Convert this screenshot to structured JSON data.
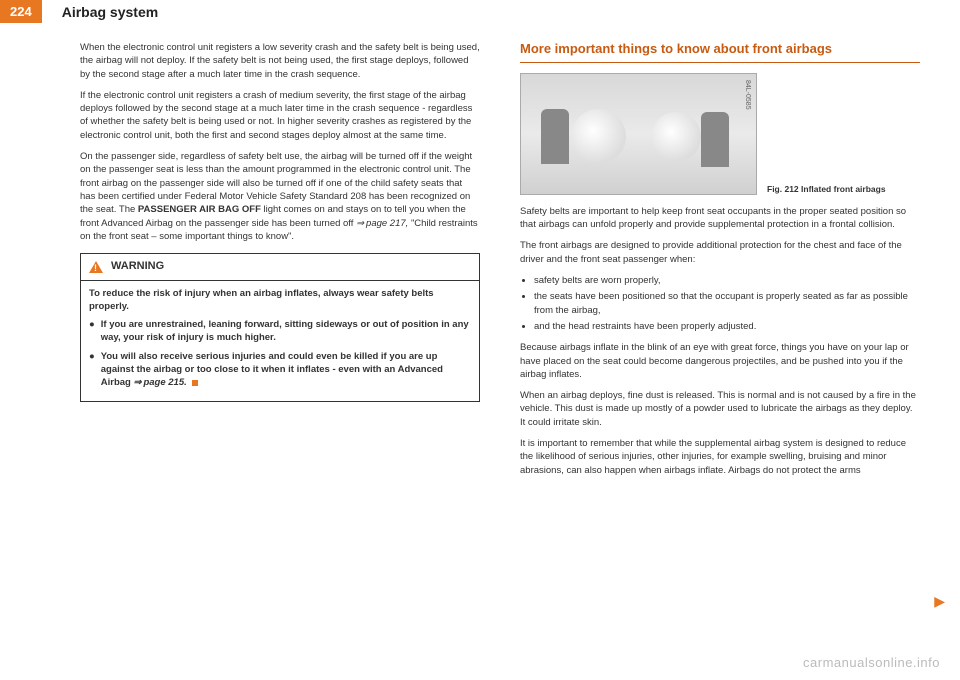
{
  "header": {
    "page_number": "224",
    "title": "Airbag system"
  },
  "left_column": {
    "p1": "When the electronic control unit registers a low severity crash and the safety belt is being used, the airbag will not deploy. If the safety belt is not being used, the first stage deploys, followed by the second stage after a much later time in the crash sequence.",
    "p2": "If the electronic control unit registers a crash of medium severity, the first stage of the airbag deploys followed by the second stage at a much later time in the crash sequence - regardless of whether the safety belt is being used or not. In higher severity crashes as registered by the electronic control unit, both the first and second stages deploy almost at the same time.",
    "p3a": "On the passenger side, regardless of safety belt use, the airbag will be turned off if the weight on the passenger seat is less than the amount programmed in the electronic control unit. The front airbag on the passenger side will also be turned off if one of the child safety seats that has been certified under Federal Motor Vehicle Safety Standard 208 has been recognized on the seat. The ",
    "p3_bold": "PASSENGER AIR BAG OFF",
    "p3b": " light comes on and stays on to tell you when the front Advanced Airbag on the passenger side has been turned off ",
    "p3_ref": "page 217,",
    "p3c": " \"Child restraints on the front seat – some important things to know\"."
  },
  "warning": {
    "title": "WARNING",
    "p1": "To reduce the risk of injury when an airbag inflates, always wear safety belts properly.",
    "b1": "If you are unrestrained, leaning forward, sitting sideways or out of position in any way, your risk of injury is much higher.",
    "b2a": "You will also receive serious injuries and could even be killed if you are up against the airbag or too close to it when it inflates - even with an Advanced Airbag ",
    "b2_ref": "page 215."
  },
  "right_column": {
    "heading": "More important things to know about front airbags",
    "fig_code": "84L-0585",
    "fig_num": "Fig. 212",
    "fig_caption": "Inflated front airbags",
    "p1": "Safety belts are important to help keep front seat occupants in the proper seated position so that airbags can unfold properly and provide supplemental protection in a frontal collision.",
    "p2": "The front airbags are designed to provide additional protection for the chest and face of the driver and the front seat passenger when:",
    "li1": "safety belts are worn properly,",
    "li2": "the seats have been positioned so that the occupant is properly seated as far as possible from the airbag,",
    "li3": "and the head restraints have been properly adjusted.",
    "p3": "Because airbags inflate in the blink of an eye with great force, things you have on your lap or have placed on the seat could become dangerous projectiles, and be pushed into you if the airbag inflates.",
    "p4": "When an airbag deploys, fine dust is released. This is normal and is not caused by a fire in the vehicle. This dust is made up mostly of a powder used to lubricate the airbags as they deploy. It could irritate skin.",
    "p5": "It is important to remember that while the supplemental airbag system is designed to reduce the likelihood of serious injuries, other injuries, for example swelling, bruising and minor abrasions, can also happen when airbags inflate. Airbags do not protect the arms"
  },
  "watermark": "carmanualsonline.info"
}
